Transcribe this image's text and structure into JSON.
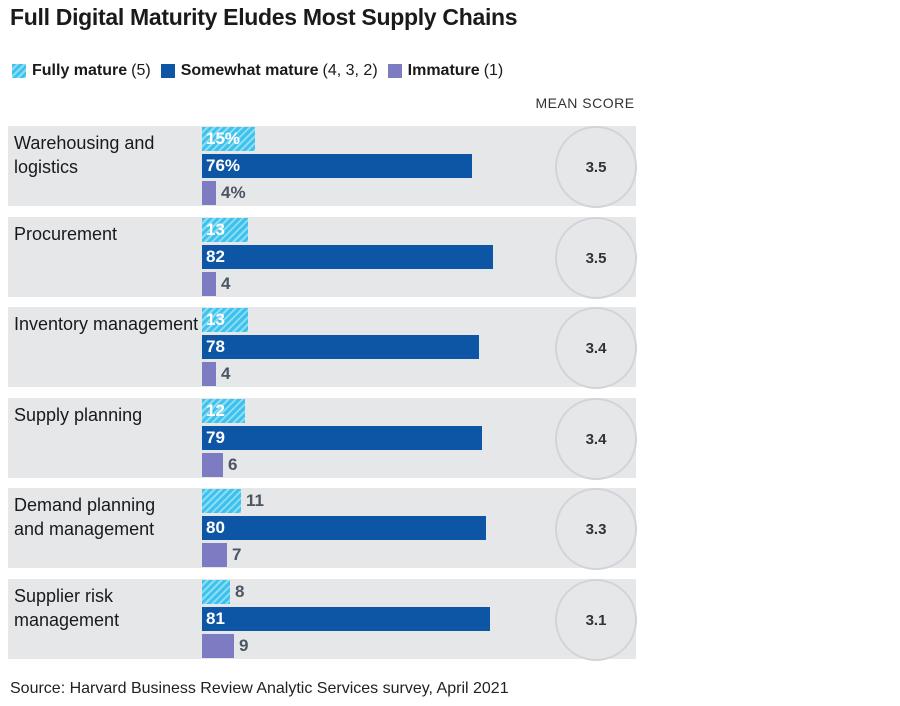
{
  "chart_data": {
    "type": "bar",
    "orientation": "horizontal",
    "title": "Full Digital Maturity Eludes Most Supply Chains",
    "mean_header": "MEAN SCORE",
    "categories": [
      "Warehousing and logistics",
      "Procurement",
      "Inventory management",
      "Supply planning",
      "Demand planning and management",
      "Supplier risk management"
    ],
    "category_display": [
      "Warehousing and\nlogistics",
      "Procurement",
      "Inventory management",
      "Supply planning",
      "Demand planning\nand management",
      "Supplier risk\nmanagement"
    ],
    "series": [
      {
        "name": "Fully mature",
        "detail": "(5)",
        "color": "#3cc2ec",
        "values": [
          15,
          13,
          13,
          12,
          11,
          8
        ],
        "labels": [
          "15%",
          "13",
          "13",
          "12",
          "11",
          "8"
        ]
      },
      {
        "name": "Somewhat mature",
        "detail": "(4, 3, 2)",
        "color": "#0d56a6",
        "values": [
          76,
          82,
          78,
          79,
          80,
          81
        ],
        "labels": [
          "76%",
          "82",
          "78",
          "79",
          "80",
          "81"
        ]
      },
      {
        "name": "Immature",
        "detail": "(1)",
        "color": "#7d7cc3",
        "values": [
          4,
          4,
          4,
          6,
          7,
          9
        ],
        "labels": [
          "4%",
          "4",
          "4",
          "6",
          "7",
          "9"
        ]
      }
    ],
    "mean_scores": [
      "3.5",
      "3.5",
      "3.4",
      "3.4",
      "3.3",
      "3.1"
    ],
    "xlim": [
      0,
      100
    ],
    "unit": "%"
  },
  "source": "Source: Harvard Business Review Analytic Services survey, April 2021"
}
